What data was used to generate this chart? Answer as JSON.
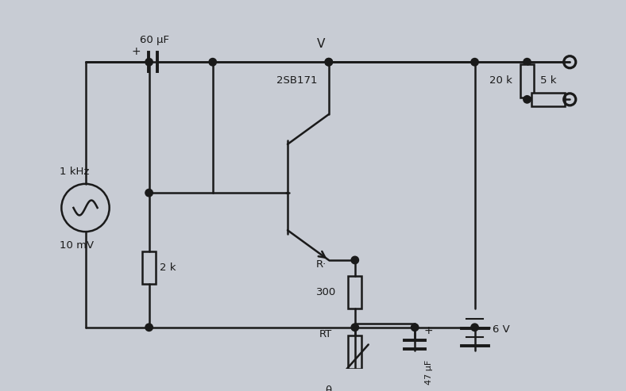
{
  "bg_color": "#c8ccd4",
  "line_color": "#1a1a1a",
  "labels": {
    "cap60": "60 μF",
    "transistor": "2SB171",
    "v_label": "V",
    "freq": "1 kHz",
    "voltage": "10 mV",
    "r2k": "2 k",
    "r300": "300",
    "rt_label": "RT",
    "theta": "θ",
    "r20k": "20 k",
    "r5k": "5 k",
    "cap47": "47 μF",
    "batt6v": "6 V",
    "r_prime": "R·",
    "plus_cap47": "+"
  }
}
